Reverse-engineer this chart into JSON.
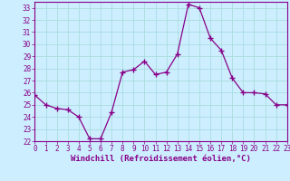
{
  "x": [
    0,
    1,
    2,
    3,
    4,
    5,
    6,
    7,
    8,
    9,
    10,
    11,
    12,
    13,
    14,
    15,
    16,
    17,
    18,
    19,
    20,
    21,
    22,
    23
  ],
  "y": [
    25.8,
    25.0,
    24.7,
    24.6,
    24.0,
    22.2,
    22.2,
    24.4,
    27.7,
    27.9,
    28.6,
    27.5,
    27.7,
    29.2,
    33.3,
    33.0,
    30.5,
    29.5,
    27.2,
    26.0,
    26.0,
    25.9,
    25.0,
    25.0
  ],
  "line_color": "#880088",
  "marker": "+",
  "marker_size": 4,
  "bg_color": "#cceeff",
  "grid_color": "#aadddd",
  "xlabel": "Windchill (Refroidissement éolien,°C)",
  "ylim": [
    22,
    33.5
  ],
  "xlim": [
    0,
    23
  ],
  "yticks": [
    22,
    23,
    24,
    25,
    26,
    27,
    28,
    29,
    30,
    31,
    32,
    33
  ],
  "xticks": [
    0,
    1,
    2,
    3,
    4,
    5,
    6,
    7,
    8,
    9,
    10,
    11,
    12,
    13,
    14,
    15,
    16,
    17,
    18,
    19,
    20,
    21,
    22,
    23
  ],
  "tick_fontsize": 5.5,
  "xlabel_fontsize": 6.5
}
